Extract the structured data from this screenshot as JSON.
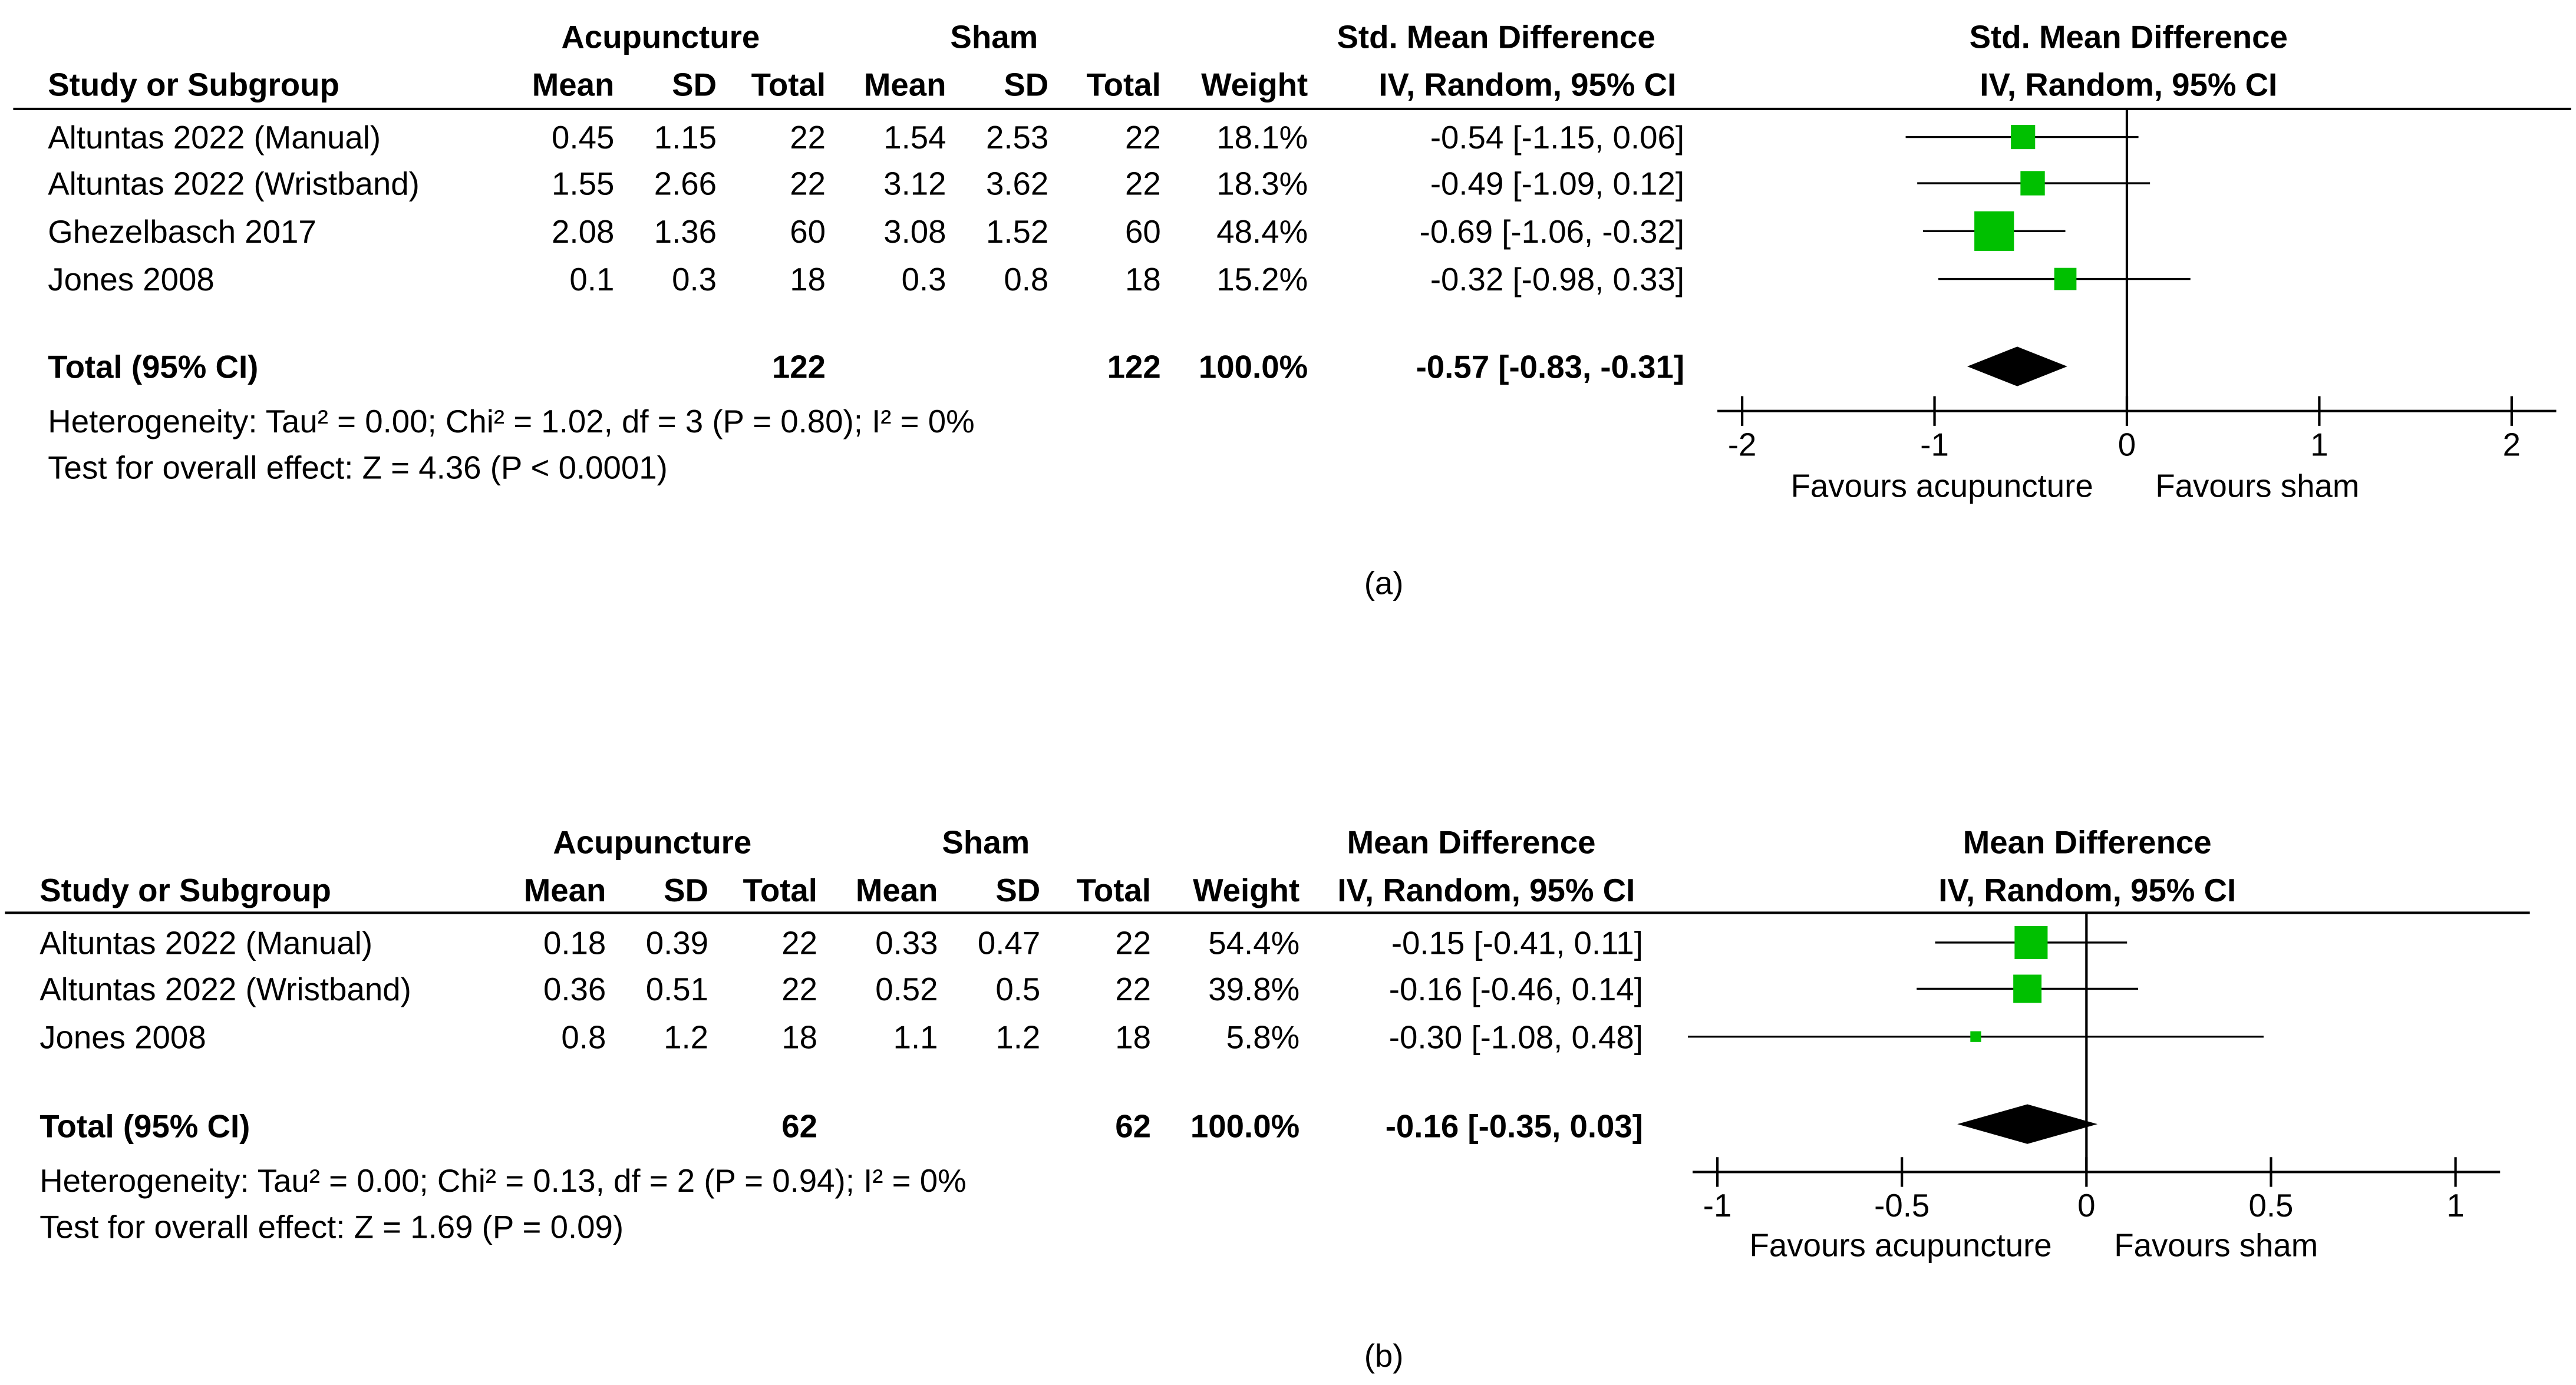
{
  "colors": {
    "marker": "#00c000",
    "diamond": "#000000",
    "line": "#000000",
    "background": "#ffffff"
  },
  "chart_data": [
    {
      "type": "forest",
      "panel_label": "(a)",
      "group1_name": "Acupuncture",
      "group2_name": "Sham",
      "col_headers": {
        "study": "Study or Subgroup",
        "mean": "Mean",
        "sd": "SD",
        "total": "Total",
        "weight": "Weight"
      },
      "effect_title": "Std. Mean Difference",
      "effect_sub": "IV, Random, 95% CI",
      "rows": [
        {
          "study": "Altuntas 2022 (Manual)",
          "m1": "0.45",
          "sd1": "1.15",
          "n1": "22",
          "m2": "1.54",
          "sd2": "2.53",
          "n2": "22",
          "weight": "18.1%",
          "ci_text": "-0.54 [-1.15, 0.06]",
          "est": -0.54,
          "lo": -1.15,
          "hi": 0.06,
          "w": 18.1
        },
        {
          "study": "Altuntas 2022 (Wristband)",
          "m1": "1.55",
          "sd1": "2.66",
          "n1": "22",
          "m2": "3.12",
          "sd2": "3.62",
          "n2": "22",
          "weight": "18.3%",
          "ci_text": "-0.49 [-1.09, 0.12]",
          "est": -0.49,
          "lo": -1.09,
          "hi": 0.12,
          "w": 18.3
        },
        {
          "study": "Ghezelbasch 2017",
          "m1": "2.08",
          "sd1": "1.36",
          "n1": "60",
          "m2": "3.08",
          "sd2": "1.52",
          "n2": "60",
          "weight": "48.4%",
          "ci_text": "-0.69 [-1.06, -0.32]",
          "est": -0.69,
          "lo": -1.06,
          "hi": -0.32,
          "w": 48.4
        },
        {
          "study": "Jones 2008",
          "m1": "0.1",
          "sd1": "0.3",
          "n1": "18",
          "m2": "0.3",
          "sd2": "0.8",
          "n2": "18",
          "weight": "15.2%",
          "ci_text": "-0.32 [-0.98, 0.33]",
          "est": -0.32,
          "lo": -0.98,
          "hi": 0.33,
          "w": 15.2
        }
      ],
      "total": {
        "label": "Total (95% CI)",
        "n1": "122",
        "n2": "122",
        "weight": "100.0%",
        "ci_text": "-0.57 [-0.83, -0.31]",
        "est": -0.57,
        "lo": -0.83,
        "hi": -0.31
      },
      "heterogeneity": "Heterogeneity: Tau² = 0.00; Chi² = 1.02, df = 3 (P = 0.80); I² = 0%",
      "overall_effect": "Test for overall effect: Z = 4.36 (P < 0.0001)",
      "axis": {
        "min": -2,
        "max": 2,
        "ticks": [
          -2,
          -1,
          0,
          1,
          2
        ],
        "tick_labels": [
          "-2",
          "-1",
          "0",
          "1",
          "2"
        ]
      },
      "favours_left": "Favours acupuncture",
      "favours_right": "Favours sham"
    },
    {
      "type": "forest",
      "panel_label": "(b)",
      "group1_name": "Acupuncture",
      "group2_name": "Sham",
      "col_headers": {
        "study": "Study or Subgroup",
        "mean": "Mean",
        "sd": "SD",
        "total": "Total",
        "weight": "Weight"
      },
      "effect_title": "Mean Difference",
      "effect_sub": "IV, Random, 95% CI",
      "rows": [
        {
          "study": "Altuntas 2022 (Manual)",
          "m1": "0.18",
          "sd1": "0.39",
          "n1": "22",
          "m2": "0.33",
          "sd2": "0.47",
          "n2": "22",
          "weight": "54.4%",
          "ci_text": "-0.15 [-0.41, 0.11]",
          "est": -0.15,
          "lo": -0.41,
          "hi": 0.11,
          "w": 54.4
        },
        {
          "study": "Altuntas 2022 (Wristband)",
          "m1": "0.36",
          "sd1": "0.51",
          "n1": "22",
          "m2": "0.52",
          "sd2": "0.5",
          "n2": "22",
          "weight": "39.8%",
          "ci_text": "-0.16 [-0.46, 0.14]",
          "est": -0.16,
          "lo": -0.46,
          "hi": 0.14,
          "w": 39.8
        },
        {
          "study": "Jones 2008",
          "m1": "0.8",
          "sd1": "1.2",
          "n1": "18",
          "m2": "1.1",
          "sd2": "1.2",
          "n2": "18",
          "weight": "5.8%",
          "ci_text": "-0.30 [-1.08, 0.48]",
          "est": -0.3,
          "lo": -1.08,
          "hi": 0.48,
          "w": 5.8
        }
      ],
      "total": {
        "label": "Total (95% CI)",
        "n1": "62",
        "n2": "62",
        "weight": "100.0%",
        "ci_text": "-0.16 [-0.35, 0.03]",
        "est": -0.16,
        "lo": -0.35,
        "hi": 0.03
      },
      "heterogeneity": "Heterogeneity: Tau² = 0.00; Chi² = 0.13, df = 2 (P = 0.94); I² = 0%",
      "overall_effect": "Test for overall effect: Z = 1.69 (P = 0.09)",
      "axis": {
        "min": -1,
        "max": 1,
        "ticks": [
          -1,
          -0.5,
          0,
          0.5,
          1
        ],
        "tick_labels": [
          "-1",
          "-0.5",
          "0",
          "0.5",
          "1"
        ]
      },
      "favours_left": "Favours acupuncture",
      "favours_right": "Favours sham"
    }
  ]
}
